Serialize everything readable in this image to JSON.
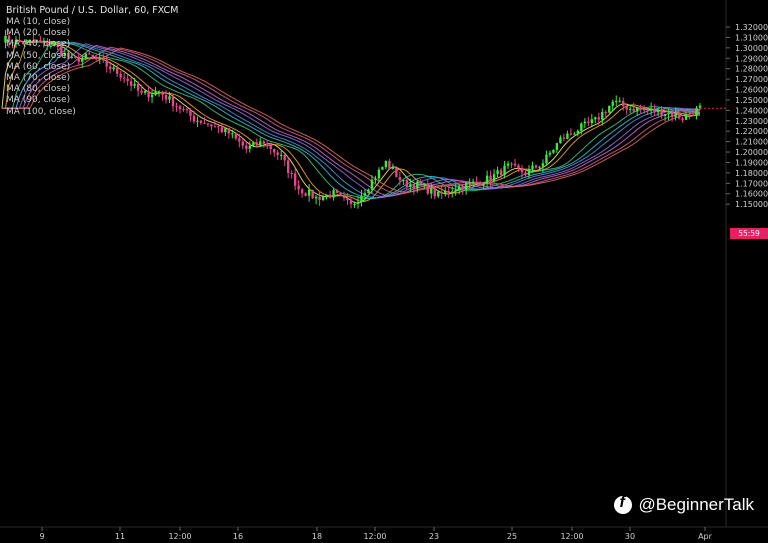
{
  "title": "British Pound / U.S. Dollar, 60, FXCM",
  "legend": [
    "MA (10, close)",
    "MA (20, close)",
    "MA (40, close)",
    "MA (50, close)",
    "MA (60, close)",
    "MA (70, close)",
    "MA (80, close)",
    "MA (90, close)",
    "MA (100, close)"
  ],
  "price_tag": "55:59",
  "watermark": "@BeginnerTalk",
  "colors": {
    "up": "#3ee83e",
    "down": "#e8458a",
    "background": "#000000"
  },
  "chart_data": {
    "type": "candlestick",
    "y_ticks": [
      "1.32000",
      "1.31000",
      "1.30000",
      "1.29000",
      "1.28000",
      "1.27000",
      "1.26000",
      "1.25000",
      "1.24000",
      "1.23000",
      "1.22000",
      "1.21000",
      "1.20000",
      "1.19000",
      "1.18000",
      "1.17000",
      "1.16000",
      "1.15000"
    ],
    "x_ticks": [
      "9",
      "11",
      "12:00",
      "16",
      "18",
      "12:00",
      "23",
      "25",
      "12:00",
      "30",
      "Apr"
    ],
    "ylim": [
      1.14,
      1.325
    ],
    "price_path": [
      [
        0,
        1.309
      ],
      [
        5,
        1.305
      ],
      [
        10,
        1.306
      ],
      [
        15,
        1.302
      ],
      [
        20,
        1.288
      ],
      [
        25,
        1.292
      ],
      [
        30,
        1.283
      ],
      [
        35,
        1.272
      ],
      [
        40,
        1.255
      ],
      [
        45,
        1.258
      ],
      [
        50,
        1.245
      ],
      [
        55,
        1.232
      ],
      [
        60,
        1.226
      ],
      [
        65,
        1.218
      ],
      [
        70,
        1.203
      ],
      [
        75,
        1.21
      ],
      [
        80,
        1.195
      ],
      [
        85,
        1.165
      ],
      [
        90,
        1.156
      ],
      [
        95,
        1.16
      ],
      [
        100,
        1.148
      ],
      [
        105,
        1.168
      ],
      [
        110,
        1.19
      ],
      [
        115,
        1.17
      ],
      [
        120,
        1.168
      ],
      [
        125,
        1.158
      ],
      [
        130,
        1.166
      ],
      [
        135,
        1.17
      ],
      [
        140,
        1.175
      ],
      [
        145,
        1.186
      ],
      [
        150,
        1.18
      ],
      [
        155,
        1.19
      ],
      [
        160,
        1.212
      ],
      [
        165,
        1.222
      ],
      [
        170,
        1.23
      ],
      [
        175,
        1.248
      ],
      [
        180,
        1.242
      ],
      [
        185,
        1.24
      ],
      [
        190,
        1.238
      ],
      [
        195,
        1.233
      ],
      [
        200,
        1.242
      ]
    ],
    "moving_average_periods": [
      10,
      20,
      40,
      50,
      60,
      70,
      80,
      90,
      100
    ],
    "moving_average_colors": [
      "#f1e36a",
      "#e6a03a",
      "#3bbf8a",
      "#39b6c9",
      "#4c8fd9",
      "#8e6ad6",
      "#c06bc4",
      "#d15b8d",
      "#d66a5a"
    ],
    "last_price_label": "1.2420"
  }
}
